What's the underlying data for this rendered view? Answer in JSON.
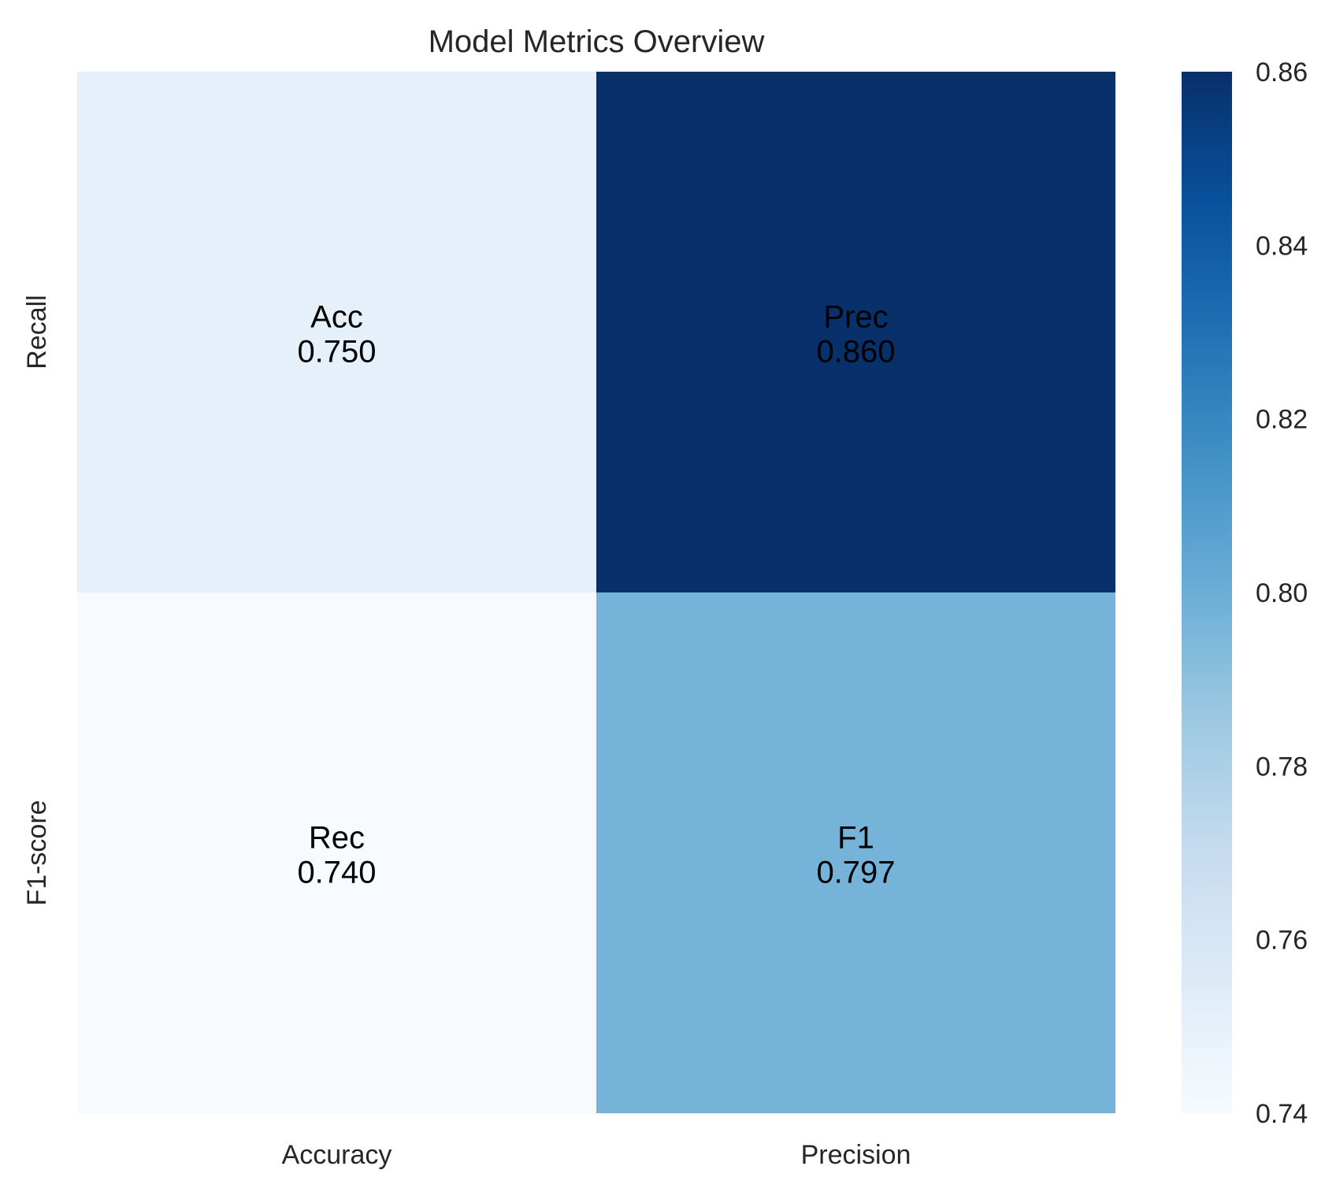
{
  "chart_data": {
    "type": "heatmap",
    "title": "Model Metrics Overview",
    "x_categories": [
      "Accuracy",
      "Precision"
    ],
    "y_categories": [
      "Recall",
      "F1-score"
    ],
    "cells": [
      [
        {
          "label": "Acc",
          "value_text": "0.750",
          "value": 0.75
        },
        {
          "label": "Prec",
          "value_text": "0.860",
          "value": 0.86
        }
      ],
      [
        {
          "label": "Rec",
          "value_text": "0.740",
          "value": 0.74
        },
        {
          "label": "F1",
          "value_text": "0.797",
          "value": 0.797
        }
      ]
    ],
    "colorbar": {
      "colormap": "Blues",
      "vmin": 0.74,
      "vmax": 0.86,
      "ticks": [
        {
          "value": 0.74,
          "label": "0.74"
        },
        {
          "value": 0.76,
          "label": "0.76"
        },
        {
          "value": 0.78,
          "label": "0.78"
        },
        {
          "value": 0.8,
          "label": "0.80"
        },
        {
          "value": 0.82,
          "label": "0.82"
        },
        {
          "value": 0.84,
          "label": "0.84"
        },
        {
          "value": 0.86,
          "label": "0.86"
        }
      ],
      "stops": [
        "#f7fbff",
        "#deebf7",
        "#c6dbef",
        "#9ecae1",
        "#6baed6",
        "#4292c6",
        "#2171b5",
        "#08519c",
        "#08306b"
      ]
    },
    "grid": false
  }
}
